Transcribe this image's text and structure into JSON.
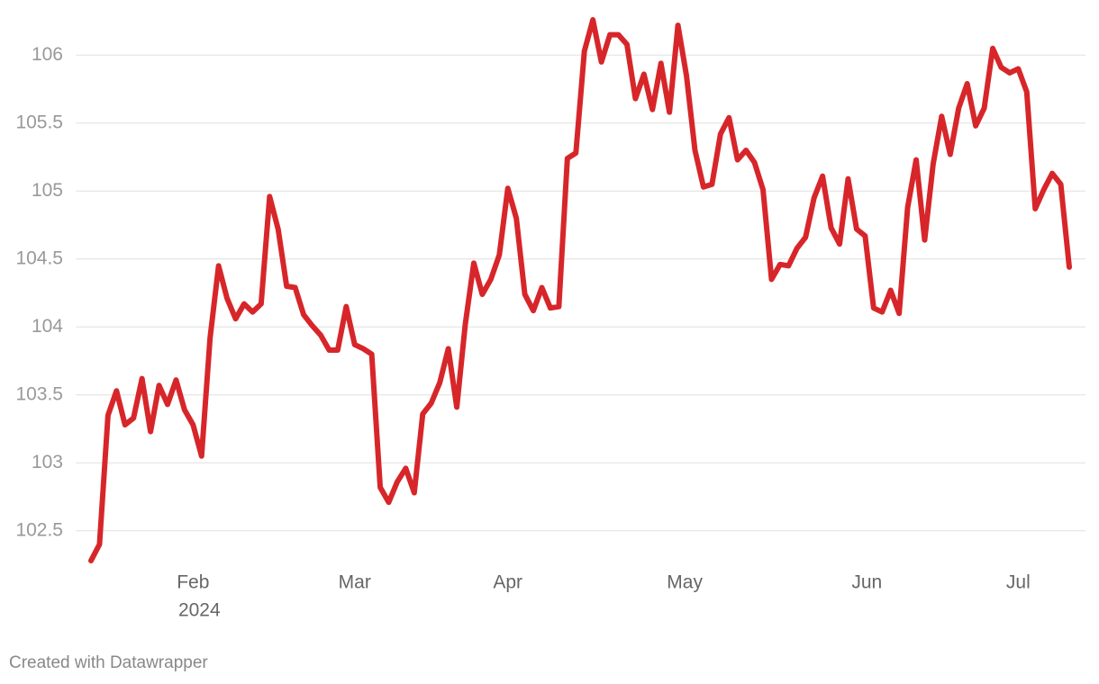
{
  "chart_data": {
    "type": "line",
    "series": [
      {
        "color": "#d7262a",
        "values": [
          102.28,
          102.4,
          103.35,
          103.53,
          103.28,
          103.33,
          103.62,
          103.23,
          103.57,
          103.43,
          103.61,
          103.39,
          103.28,
          103.05,
          103.92,
          104.45,
          104.21,
          104.06,
          104.17,
          104.11,
          104.17,
          104.96,
          104.72,
          104.3,
          104.29,
          104.09,
          104.01,
          103.94,
          103.83,
          103.83,
          104.15,
          103.87,
          103.84,
          103.8,
          102.82,
          102.71,
          102.86,
          102.96,
          102.78,
          103.36,
          103.44,
          103.59,
          103.84,
          103.41,
          104.02,
          104.47,
          104.24,
          104.35,
          104.53,
          105.02,
          104.8,
          104.24,
          104.12,
          104.29,
          104.14,
          104.15,
          105.24,
          105.28,
          106.03,
          106.26,
          105.95,
          106.15,
          106.15,
          106.08,
          105.68,
          105.86,
          105.6,
          105.94,
          105.58,
          106.22,
          105.85,
          105.3,
          105.03,
          105.05,
          105.42,
          105.54,
          105.23,
          105.3,
          105.21,
          105.01,
          104.35,
          104.46,
          104.45,
          104.58,
          104.66,
          104.95,
          105.11,
          104.73,
          104.61,
          105.09,
          104.72,
          104.67,
          104.14,
          104.11,
          104.27,
          104.1,
          104.88,
          105.23,
          104.64,
          105.2,
          105.55,
          105.27,
          105.61,
          105.79,
          105.48,
          105.61,
          106.05,
          105.91,
          105.87,
          105.9,
          105.73,
          104.87,
          105.01,
          105.13,
          105.05,
          104.44
        ]
      }
    ],
    "xlim": [
      0,
      115
    ],
    "xticks": [
      {
        "value": 12,
        "label": "Feb"
      },
      {
        "value": 31,
        "label": "Mar"
      },
      {
        "value": 49,
        "label": "Apr"
      },
      {
        "value": 69.8,
        "label": "May"
      },
      {
        "value": 91.2,
        "label": "Jun"
      },
      {
        "value": 109,
        "label": "Jul"
      }
    ],
    "xtick_sublabel": "2024",
    "ylim": [
      102.3,
      106.3
    ],
    "yticks": [
      102.5,
      103,
      103.5,
      104,
      104.5,
      105,
      105.5,
      106
    ],
    "grid": true,
    "footer": "Created with Datawrapper"
  }
}
